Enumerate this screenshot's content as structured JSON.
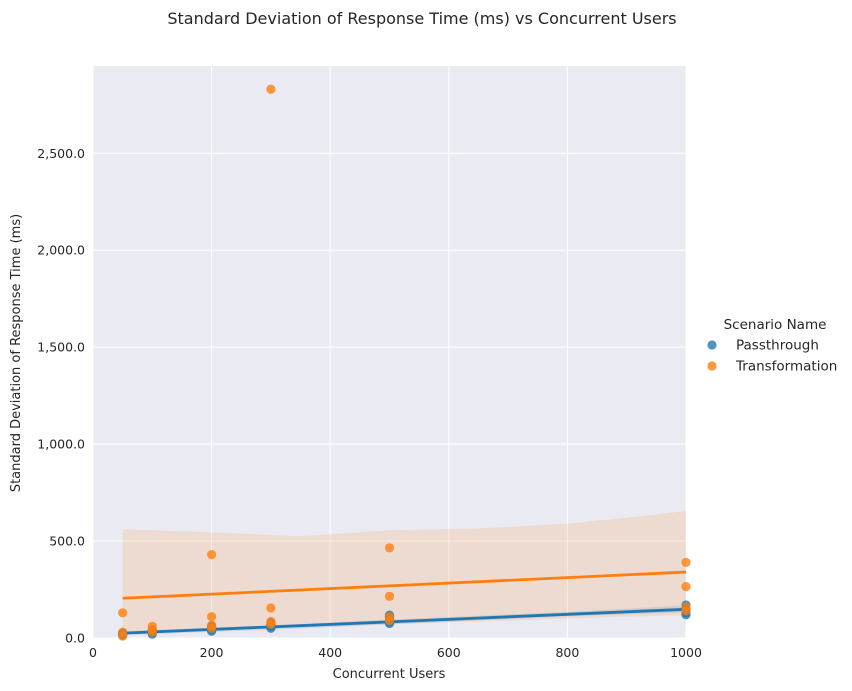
{
  "chart_data": {
    "type": "scatter",
    "title": "Standard Deviation of Response Time (ms) vs Concurrent Users",
    "xlabel": "Concurrent Users",
    "ylabel": "Standard Deviation of Response Time (ms)",
    "xlim": [
      0,
      1000
    ],
    "ylim": [
      0,
      2950
    ],
    "xticks": [
      {
        "value": 0,
        "label": "0"
      },
      {
        "value": 200,
        "label": "200"
      },
      {
        "value": 400,
        "label": "400"
      },
      {
        "value": 600,
        "label": "600"
      },
      {
        "value": 800,
        "label": "800"
      },
      {
        "value": 1000,
        "label": "1000"
      }
    ],
    "yticks": [
      {
        "value": 0,
        "label": "0.0"
      },
      {
        "value": 500,
        "label": "500.0"
      },
      {
        "value": 1000,
        "label": "1,000.0"
      },
      {
        "value": 1500,
        "label": "1,500.0"
      },
      {
        "value": 2000,
        "label": "2,000.0"
      },
      {
        "value": 2500,
        "label": "2,500.0"
      }
    ],
    "grid": true,
    "legend": {
      "title": "Scenario Name",
      "placement": "right"
    },
    "series": [
      {
        "name": "Passthrough",
        "color": "#1f77b4",
        "points": [
          {
            "x": 50,
            "y": 15
          },
          {
            "x": 50,
            "y": 20
          },
          {
            "x": 50,
            "y": 25
          },
          {
            "x": 100,
            "y": 20
          },
          {
            "x": 100,
            "y": 28
          },
          {
            "x": 100,
            "y": 35
          },
          {
            "x": 100,
            "y": 42
          },
          {
            "x": 200,
            "y": 35
          },
          {
            "x": 200,
            "y": 45
          },
          {
            "x": 200,
            "y": 55
          },
          {
            "x": 200,
            "y": 62
          },
          {
            "x": 300,
            "y": 50
          },
          {
            "x": 300,
            "y": 60
          },
          {
            "x": 300,
            "y": 70
          },
          {
            "x": 300,
            "y": 80
          },
          {
            "x": 500,
            "y": 75
          },
          {
            "x": 500,
            "y": 85
          },
          {
            "x": 500,
            "y": 100
          },
          {
            "x": 500,
            "y": 110
          },
          {
            "x": 500,
            "y": 118
          },
          {
            "x": 1000,
            "y": 120
          },
          {
            "x": 1000,
            "y": 130
          },
          {
            "x": 1000,
            "y": 145
          },
          {
            "x": 1000,
            "y": 155
          },
          {
            "x": 1000,
            "y": 170
          }
        ],
        "regression": {
          "x": [
            50,
            1000
          ],
          "y": [
            25,
            148
          ]
        },
        "ci_band": {
          "x": [
            50,
            300,
            500,
            800,
            1000
          ],
          "lower": [
            15,
            42,
            70,
            112,
            132
          ],
          "upper": [
            35,
            65,
            95,
            135,
            168
          ]
        }
      },
      {
        "name": "Transformation",
        "color": "#ff7f0e",
        "points": [
          {
            "x": 50,
            "y": 10
          },
          {
            "x": 50,
            "y": 30
          },
          {
            "x": 50,
            "y": 130
          },
          {
            "x": 100,
            "y": 30
          },
          {
            "x": 100,
            "y": 45
          },
          {
            "x": 100,
            "y": 60
          },
          {
            "x": 200,
            "y": 50
          },
          {
            "x": 200,
            "y": 65
          },
          {
            "x": 200,
            "y": 110
          },
          {
            "x": 200,
            "y": 430
          },
          {
            "x": 300,
            "y": 70
          },
          {
            "x": 300,
            "y": 85
          },
          {
            "x": 300,
            "y": 155
          },
          {
            "x": 300,
            "y": 2830
          },
          {
            "x": 500,
            "y": 90
          },
          {
            "x": 500,
            "y": 110
          },
          {
            "x": 500,
            "y": 215
          },
          {
            "x": 500,
            "y": 465
          },
          {
            "x": 1000,
            "y": 140
          },
          {
            "x": 1000,
            "y": 160
          },
          {
            "x": 1000,
            "y": 265
          },
          {
            "x": 1000,
            "y": 390
          }
        ],
        "regression": {
          "x": [
            50,
            1000
          ],
          "y": [
            205,
            340
          ]
        },
        "ci_band": {
          "x": [
            50,
            200,
            350,
            500,
            650,
            800,
            900,
            1000
          ],
          "lower": [
            30,
            40,
            55,
            70,
            85,
            100,
            110,
            118
          ],
          "upper": [
            560,
            545,
            525,
            555,
            565,
            590,
            620,
            655
          ]
        }
      }
    ]
  }
}
